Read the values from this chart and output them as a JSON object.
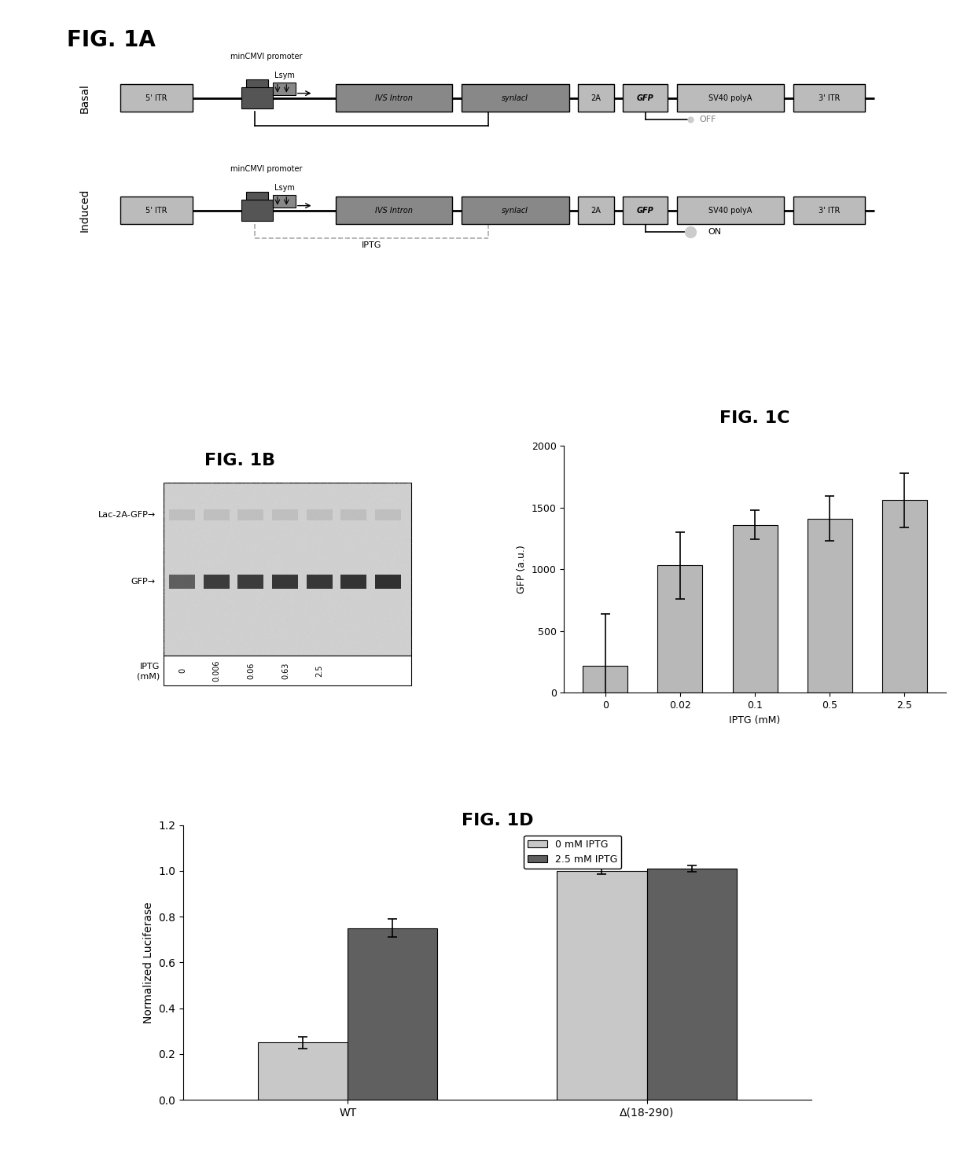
{
  "fig1a_title": "FIG. 1A",
  "fig1b_title": "FIG. 1B",
  "fig1c_title": "FIG. 1C",
  "fig1d_title": "FIG. 1D",
  "fig1c_categories": [
    "0",
    "0.02",
    "0.1",
    "0.5",
    "2.5"
  ],
  "fig1c_values": [
    220,
    1030,
    1360,
    1410,
    1560
  ],
  "fig1c_errors": [
    420,
    270,
    120,
    180,
    220
  ],
  "fig1c_ylabel": "GFP (a.u.)",
  "fig1c_xlabel": "IPTG (mM)",
  "fig1c_ylim": [
    0,
    2000
  ],
  "fig1c_yticks": [
    0,
    500,
    1000,
    1500,
    2000
  ],
  "fig1c_bar_color": "#b8b8b8",
  "fig1d_categories": [
    "WT",
    "Δ(18-290)"
  ],
  "fig1d_values_0mM": [
    0.25,
    1.0
  ],
  "fig1d_values_2p5mM": [
    0.75,
    1.01
  ],
  "fig1d_errors_0mM": [
    0.025,
    0.015
  ],
  "fig1d_errors_2p5mM": [
    0.04,
    0.015
  ],
  "fig1d_ylabel": "Normalized Luciferase",
  "fig1d_ylim": [
    0,
    1.2
  ],
  "fig1d_yticks": [
    0,
    0.2,
    0.4,
    0.6,
    0.8,
    1.0,
    1.2
  ],
  "fig1d_color_0mM": "#c8c8c8",
  "fig1d_color_2p5mM": "#606060",
  "fig1d_legend_0mM": "0 mM IPTG",
  "fig1d_legend_2p5mM": "2.5 mM IPTG",
  "bg_color": "#ffffff",
  "text_color": "#000000",
  "blot_bg": "#cccccc",
  "band_top_color": "#a0a0a0",
  "band_bot_color": "#222222",
  "gray_dark": "#555555",
  "gray_med": "#888888",
  "gray_light": "#bbbbbb"
}
